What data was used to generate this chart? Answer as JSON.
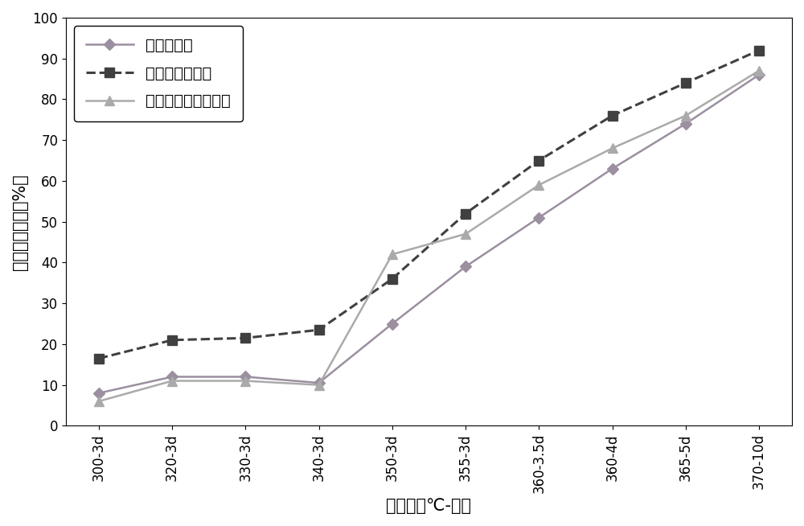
{
  "x_labels": [
    "300-3d",
    "320-3d",
    "330-3d",
    "340-3d",
    "350-3d",
    "355-3d",
    "360-3.5d",
    "360-4d",
    "365-5d",
    "370-10d"
  ],
  "series": [
    {
      "name": "不计量轻烃",
      "values": [
        8,
        12,
        12,
        10.5,
        25,
        39,
        51,
        63,
        74,
        86
      ],
      "color": "#9b8fa0",
      "linestyle": "-",
      "marker": "D",
      "linewidth": 1.8,
      "markersize": 7
    },
    {
      "name": "本发明计量轻烃",
      "values": [
        16.5,
        21,
        21.5,
        23.5,
        36,
        52,
        65,
        76,
        84,
        92
      ],
      "color": "#404040",
      "linestyle": "--",
      "marker": "s",
      "linewidth": 2.2,
      "markersize": 8
    },
    {
      "name": "全二维气相色谱方法",
      "values": [
        6,
        11,
        11,
        10,
        42,
        47,
        59,
        68,
        76,
        87
      ],
      "color": "#aaaaaa",
      "linestyle": "-",
      "marker": "^",
      "linewidth": 1.8,
      "markersize": 8
    }
  ],
  "xlabel": "实验点（℃-天）",
  "ylabel": "阶段排烃效率（%）",
  "ylim": [
    0,
    100
  ],
  "yticks": [
    0,
    10,
    20,
    30,
    40,
    50,
    60,
    70,
    80,
    90,
    100
  ],
  "background_color": "#ffffff",
  "legend_loc": "upper left",
  "legend_fontsize": 14,
  "axis_label_fontsize": 15,
  "tick_fontsize": 12,
  "figsize": [
    10.0,
    6.54
  ],
  "dpi": 100
}
